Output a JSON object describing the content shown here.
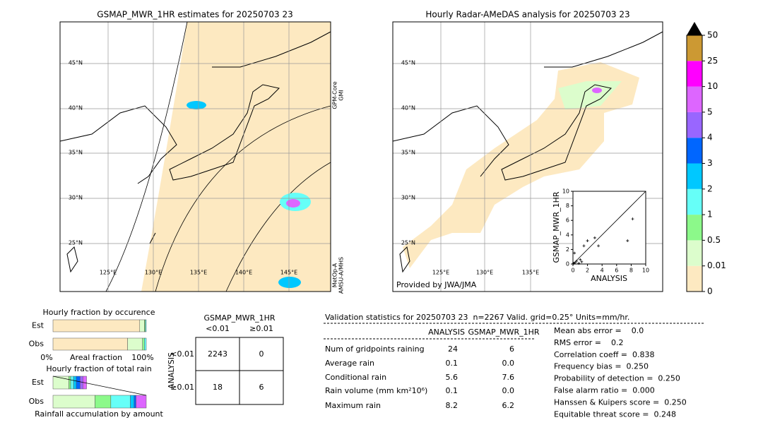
{
  "left_map": {
    "title": "GSMAP_MWR_1HR estimates for 20250703 23",
    "lat_labels": [
      "45°N",
      "40°N",
      "35°N",
      "30°N",
      "25°N"
    ],
    "lon_labels": [
      "125°E",
      "130°E",
      "135°E",
      "140°E",
      "145°E"
    ],
    "sensor_labels": [
      [
        "GPM-Core",
        "GMI"
      ],
      [
        "MetOp-A",
        "AMSU-A/MHS"
      ]
    ]
  },
  "right_map": {
    "title": "Hourly Radar-AMeDAS analysis for 20250703 23",
    "lat_labels": [
      "45°N",
      "40°N",
      "35°N",
      "30°N",
      "25°N"
    ],
    "lon_labels": [
      "125°E",
      "130°E",
      "135°E"
    ],
    "credit": "Provided by JWA/JMA"
  },
  "colorbar": {
    "labels": [
      "0",
      "0.01",
      "0.5",
      "1",
      "2",
      "3",
      "4",
      "5",
      "10",
      "25",
      "50"
    ],
    "colors": [
      "#fde9c1",
      "#dcfdcc",
      "#8cf98a",
      "#66fff8",
      "#00c8ff",
      "#0066ff",
      "#9966ff",
      "#dd66ff",
      "#ff00ff",
      "#cc9933"
    ]
  },
  "chart_data": {
    "type": "scatter",
    "xlabel": "ANALYSIS",
    "ylabel": "GSMAP_MWR_1HR",
    "xlim": [
      0,
      10
    ],
    "ylim": [
      0,
      10
    ],
    "xticks": [
      0,
      2,
      4,
      6,
      8,
      10
    ],
    "yticks": [
      0,
      2,
      4,
      6,
      8,
      10
    ],
    "x": [
      0.1,
      0.3,
      0.5,
      0.8,
      1.0,
      1.2,
      0.2,
      1.5,
      2.0,
      3.0,
      3.5,
      7.5,
      8.2
    ],
    "values": [
      0.1,
      0.2,
      0.4,
      0.1,
      0.6,
      0.3,
      1.5,
      2.5,
      3.2,
      3.6,
      2.5,
      3.2,
      6.2
    ]
  },
  "fraction_charts": {
    "occurrence": {
      "title": "Hourly fraction by occurence",
      "est_label": "Est",
      "obs_label": "Obs",
      "est": [
        93,
        5,
        1,
        1
      ],
      "obs": [
        80,
        16,
        2,
        2
      ],
      "axis_labels": [
        "0%",
        "Areal fraction",
        "100%"
      ]
    },
    "total_rain": {
      "title": "Hourly fraction of total rain",
      "est_label": "Est",
      "obs_label": "Obs",
      "est": [
        0,
        17,
        2,
        3,
        3,
        4,
        3,
        4
      ],
      "obs": [
        0,
        45,
        17,
        21,
        4,
        2,
        0,
        11
      ],
      "caption": "Rainfall accumulation by amount"
    }
  },
  "contingency": {
    "title": "GSMAP_MWR_1HR",
    "col_headers": [
      "<0.01",
      "≥0.01"
    ],
    "row_axis": "ANALYSIS",
    "row_headers": [
      "<0.01",
      "≥0.01"
    ],
    "cells": [
      [
        "2243",
        "0"
      ],
      [
        "18",
        "6"
      ]
    ]
  },
  "validation": {
    "header": "Validation statistics for 20250703 23  n=2267 Valid. grid=0.25° Units=mm/hr.",
    "columns": [
      "ANALYSIS",
      "GSMAP_MWR_1HR"
    ],
    "rows": [
      {
        "label": "Num of gridpoints raining",
        "values": [
          "24",
          "6"
        ]
      },
      {
        "label": "Average rain",
        "values": [
          "0.1",
          "0.0"
        ]
      },
      {
        "label": "Conditional rain",
        "values": [
          "5.6",
          "7.6"
        ]
      },
      {
        "label": "Rain volume (mm km²10⁶)",
        "values": [
          "0.1",
          "0.0"
        ]
      },
      {
        "label": "Maximum rain",
        "values": [
          "8.2",
          "6.2"
        ]
      }
    ],
    "scores": [
      "Mean abs error =    0.0",
      "RMS error =    0.2",
      "Correlation coeff =  0.838",
      "Frequency bias =  0.250",
      "Probability of detection =  0.250",
      "False alarm ratio =  0.000",
      "Hanssen & Kuipers score =  0.250",
      "Equitable threat score =  0.248"
    ]
  }
}
